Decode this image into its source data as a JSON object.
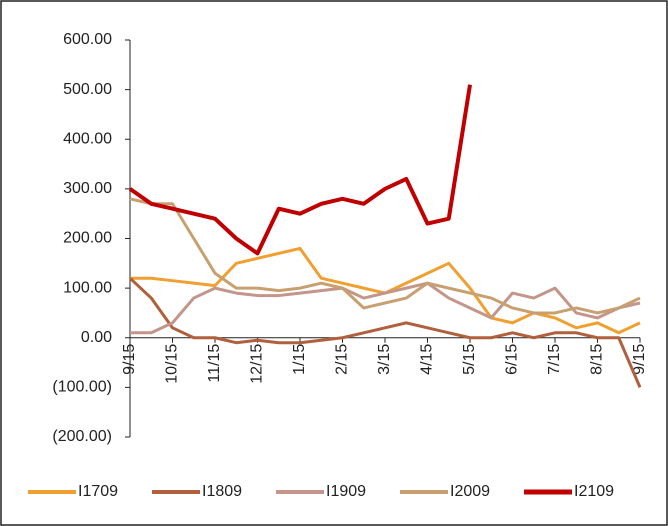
{
  "chart_data": {
    "type": "line",
    "categories": [
      "9/15",
      null,
      "10/15",
      null,
      "11/15",
      null,
      "12/15",
      null,
      "1/15",
      null,
      "2/15",
      null,
      "3/15",
      null,
      "4/15",
      null,
      "5/15",
      null,
      "6/15",
      null,
      "7/15",
      null,
      "8/15",
      null,
      "9/15"
    ],
    "series": [
      {
        "name": "I1709",
        "color": "#f0a030",
        "values": [
          120,
          120,
          115,
          110,
          105,
          150,
          160,
          170,
          180,
          120,
          110,
          100,
          90,
          110,
          130,
          150,
          100,
          40,
          30,
          50,
          40,
          20,
          30,
          10,
          30
        ]
      },
      {
        "name": "I1809",
        "color": "#b0603c",
        "values": [
          120,
          80,
          20,
          0,
          0,
          -10,
          -5,
          -10,
          -10,
          -5,
          0,
          10,
          20,
          30,
          20,
          10,
          0,
          0,
          10,
          0,
          10,
          10,
          0,
          0,
          -100
        ]
      },
      {
        "name": "I1909",
        "color": "#c4958a",
        "values": [
          10,
          10,
          30,
          80,
          100,
          90,
          85,
          85,
          90,
          95,
          100,
          80,
          90,
          100,
          110,
          80,
          60,
          40,
          90,
          80,
          100,
          50,
          40,
          60,
          70
        ]
      },
      {
        "name": "I2009",
        "color": "#c8a070",
        "values": [
          280,
          270,
          270,
          200,
          130,
          100,
          100,
          95,
          100,
          110,
          100,
          60,
          70,
          80,
          110,
          100,
          90,
          80,
          60,
          50,
          50,
          60,
          50,
          60,
          80
        ]
      },
      {
        "name": "I2109",
        "color": "#c00000",
        "values": [
          300,
          270,
          260,
          250,
          240,
          200,
          170,
          260,
          250,
          270,
          280,
          270,
          300,
          320,
          230,
          240,
          510,
          null,
          null,
          null,
          null,
          null,
          null,
          null,
          null
        ]
      }
    ],
    "ylim": [
      -200,
      600
    ],
    "yticks": [
      {
        "value": -200,
        "label": "(200.00)"
      },
      {
        "value": -100,
        "label": "(100.00)"
      },
      {
        "value": 0,
        "label": "0.00"
      },
      {
        "value": 100,
        "label": "100.00"
      },
      {
        "value": 200,
        "label": "200.00"
      },
      {
        "value": 300,
        "label": "300.00"
      },
      {
        "value": 400,
        "label": "400.00"
      },
      {
        "value": 500,
        "label": "500.00"
      },
      {
        "value": 600,
        "label": "600.00"
      }
    ],
    "legend": "bottom"
  }
}
